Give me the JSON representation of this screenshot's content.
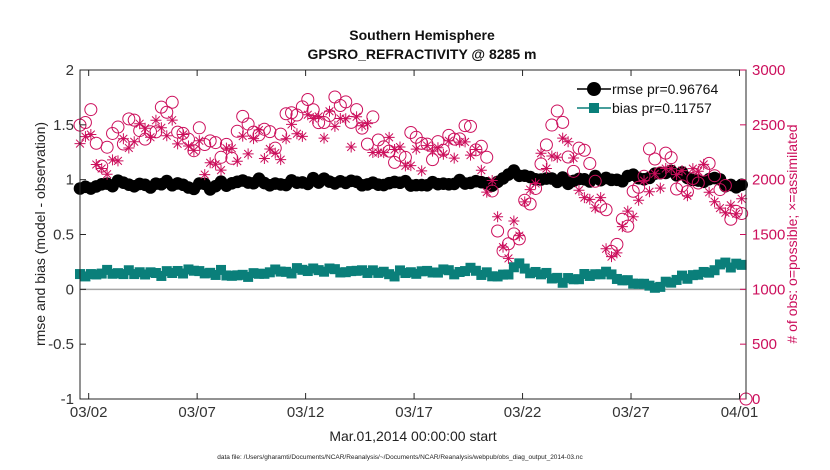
{
  "chart_data": {
    "type": "line",
    "title": "Southern Hemisphere",
    "subtitle": "GPSRO_REFRACTIVITY @ 8285 m",
    "xlabel": "Mar.01,2014 00:00:00 start",
    "ylabel_left": "rmse and bias (model - observation)",
    "ylabel_right": "# of obs: o=possible; ×=assimilated",
    "footer": "data file: /Users/gharamti/Documents/NCAR/Reanalysis/~/Documents/NCAR/Reanalysis/webpub/obs_diag_output_2014-03.nc",
    "x_range_days": [
      0.6,
      31.3
    ],
    "x_ticks": [
      {
        "day": 1,
        "label": "03/02"
      },
      {
        "day": 6,
        "label": "03/07"
      },
      {
        "day": 11,
        "label": "03/12"
      },
      {
        "day": 16,
        "label": "03/17"
      },
      {
        "day": 21,
        "label": "03/22"
      },
      {
        "day": 26,
        "label": "03/27"
      },
      {
        "day": 31,
        "label": "04/01"
      }
    ],
    "y_left_range": [
      -1,
      2
    ],
    "y_left_ticks": [
      "-1",
      "-0.5",
      "0",
      "0.5",
      "1",
      "1.5",
      "2"
    ],
    "y_right_range": [
      0,
      3000
    ],
    "y_right_ticks": [
      "0",
      "500",
      "1000",
      "1500",
      "2000",
      "2500",
      "3000"
    ],
    "zero_line": 0,
    "legend_position": "top-right",
    "series": [
      {
        "name": "rmse pr=0.96764",
        "axis": "left",
        "marker": "circle",
        "color": "#000000",
        "keypoints": [
          [
            0.6,
            0.92
          ],
          [
            1.5,
            0.96
          ],
          [
            2.5,
            0.97
          ],
          [
            3.5,
            0.94
          ],
          [
            4.5,
            0.98
          ],
          [
            5.5,
            0.95
          ],
          [
            6.5,
            0.93
          ],
          [
            7.5,
            0.97
          ],
          [
            8.5,
            0.99
          ],
          [
            9.5,
            0.96
          ],
          [
            10.5,
            0.98
          ],
          [
            11.5,
            0.99
          ],
          [
            12.5,
            0.98
          ],
          [
            13.5,
            0.97
          ],
          [
            14.5,
            0.98
          ],
          [
            15.5,
            0.96
          ],
          [
            16.5,
            0.95
          ],
          [
            17.5,
            0.97
          ],
          [
            18.5,
            0.99
          ],
          [
            19.2,
            0.95
          ],
          [
            19.6,
            0.92
          ],
          [
            20.0,
            0.98
          ],
          [
            20.6,
            1.08
          ],
          [
            21.2,
            1.04
          ],
          [
            22.0,
            1.0
          ],
          [
            23.0,
            0.99
          ],
          [
            24.0,
            1.01
          ],
          [
            25.0,
            0.99
          ],
          [
            26.0,
            1.02
          ],
          [
            27.0,
            1.04
          ],
          [
            28.0,
            1.06
          ],
          [
            29.0,
            1.02
          ],
          [
            30.0,
            0.99
          ],
          [
            30.5,
            0.95
          ],
          [
            31.0,
            0.96
          ],
          [
            31.3,
            0.98
          ]
        ],
        "amplitude": 0.03
      },
      {
        "name": "bias pr=0.11757",
        "axis": "left",
        "marker": "square",
        "color": "#0a7f7a",
        "keypoints": [
          [
            0.6,
            0.14
          ],
          [
            2.5,
            0.17
          ],
          [
            4.5,
            0.15
          ],
          [
            6.5,
            0.16
          ],
          [
            8.5,
            0.14
          ],
          [
            10.5,
            0.17
          ],
          [
            12.5,
            0.16
          ],
          [
            14.5,
            0.14
          ],
          [
            16.5,
            0.15
          ],
          [
            18.5,
            0.17
          ],
          [
            19.5,
            0.14
          ],
          [
            20.3,
            0.13
          ],
          [
            20.6,
            0.23
          ],
          [
            21.2,
            0.18
          ],
          [
            22.0,
            0.15
          ],
          [
            22.8,
            0.07
          ],
          [
            23.5,
            0.09
          ],
          [
            24.2,
            0.15
          ],
          [
            25.2,
            0.13
          ],
          [
            26.2,
            0.06
          ],
          [
            27.0,
            0.04
          ],
          [
            27.8,
            0.06
          ],
          [
            28.6,
            0.12
          ],
          [
            29.6,
            0.18
          ],
          [
            30.2,
            0.22
          ],
          [
            31.3,
            0.24
          ]
        ],
        "amplitude": 0.03
      },
      {
        "name": "possible",
        "axis": "right",
        "marker": "open-circle",
        "color": "#cc0f5c",
        "keypoints": [
          [
            0.6,
            2550
          ],
          [
            1.0,
            2650
          ],
          [
            1.5,
            2200
          ],
          [
            2.5,
            2350
          ],
          [
            3.5,
            2500
          ],
          [
            4.5,
            2600
          ],
          [
            5.5,
            2450
          ],
          [
            6.5,
            2250
          ],
          [
            7.5,
            2300
          ],
          [
            8.5,
            2500
          ],
          [
            9.5,
            2400
          ],
          [
            10.5,
            2550
          ],
          [
            11.0,
            2700
          ],
          [
            12.5,
            2600
          ],
          [
            13.5,
            2500
          ],
          [
            14.5,
            2400
          ],
          [
            15.5,
            2250
          ],
          [
            16.5,
            2300
          ],
          [
            17.5,
            2400
          ],
          [
            18.5,
            2500
          ],
          [
            19.3,
            2200
          ],
          [
            19.8,
            1700
          ],
          [
            20.3,
            1400
          ],
          [
            20.8,
            1600
          ],
          [
            21.5,
            2000
          ],
          [
            22.0,
            2300
          ],
          [
            22.5,
            2500
          ],
          [
            23.5,
            2200
          ],
          [
            24.2,
            2000
          ],
          [
            24.8,
            1600
          ],
          [
            25.3,
            1450
          ],
          [
            26.0,
            1800
          ],
          [
            26.6,
            2100
          ],
          [
            27.5,
            2200
          ],
          [
            28.5,
            2000
          ],
          [
            29.5,
            2200
          ],
          [
            30.3,
            1800
          ],
          [
            31.0,
            1750
          ],
          [
            31.3,
            2000
          ]
        ],
        "amplitude": 170
      },
      {
        "name": "assimilated",
        "axis": "right",
        "marker": "asterisk",
        "color": "#cc0f5c",
        "keypoints": [
          [
            0.6,
            2450
          ],
          [
            1.0,
            2550
          ],
          [
            1.5,
            2150
          ],
          [
            2.5,
            2250
          ],
          [
            3.5,
            2400
          ],
          [
            4.5,
            2500
          ],
          [
            5.5,
            2350
          ],
          [
            6.5,
            2150
          ],
          [
            7.5,
            2200
          ],
          [
            8.5,
            2400
          ],
          [
            9.5,
            2300
          ],
          [
            10.5,
            2450
          ],
          [
            11.0,
            2600
          ],
          [
            12.5,
            2500
          ],
          [
            13.5,
            2400
          ],
          [
            14.5,
            2300
          ],
          [
            15.5,
            2150
          ],
          [
            16.5,
            2200
          ],
          [
            17.5,
            2300
          ],
          [
            18.5,
            2400
          ],
          [
            19.3,
            2100
          ],
          [
            19.8,
            1650
          ],
          [
            20.3,
            1350
          ],
          [
            20.8,
            1550
          ],
          [
            21.5,
            1950
          ],
          [
            22.0,
            2200
          ],
          [
            22.5,
            2400
          ],
          [
            23.5,
            2100
          ],
          [
            24.2,
            1900
          ],
          [
            24.8,
            1550
          ],
          [
            25.3,
            1400
          ],
          [
            26.0,
            1750
          ],
          [
            26.6,
            2000
          ],
          [
            27.5,
            2100
          ],
          [
            28.5,
            1900
          ],
          [
            29.5,
            2100
          ],
          [
            30.3,
            1700
          ],
          [
            31.0,
            1650
          ],
          [
            31.3,
            1900
          ]
        ],
        "amplitude": 170
      }
    ],
    "samples_per_day": 4
  },
  "colors": {
    "rmse": "#000000",
    "bias": "#0a7f7a",
    "obs": "#cc0f5c",
    "zero_line": "#a6a6a6",
    "axis": "#262626"
  }
}
